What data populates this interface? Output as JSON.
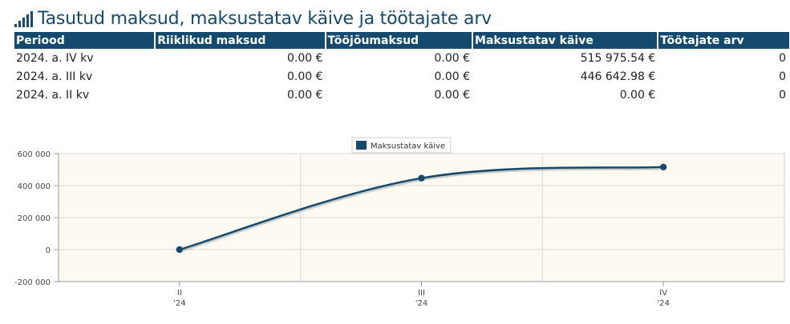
{
  "header": {
    "title": "Tasutud maksud, maksustatav käive ja töötajate arv",
    "icon": "signal-bars-icon"
  },
  "table": {
    "columns": [
      "Periood",
      "Riiklikud maksud",
      "Tööjõumaksud",
      "Maksustatav käive",
      "Töötajate arv"
    ],
    "rows": [
      [
        "2024. a. IV kv",
        "0.00 €",
        "0.00 €",
        "515 975.54 €",
        "0"
      ],
      [
        "2024. a. III kv",
        "0.00 €",
        "0.00 €",
        "446 642.98 €",
        "0"
      ],
      [
        "2024. a. II kv",
        "0.00 €",
        "0.00 €",
        "0.00 €",
        "0"
      ]
    ]
  },
  "colors": {
    "accent": "#134a6e",
    "plot_bg": "#fdfbf1",
    "grid": "#d8d8d8"
  },
  "chart_data": {
    "type": "line",
    "legend": "Maksustatav käive",
    "legend_position": "top-center",
    "categories": [
      "II\n'24",
      "III\n'24",
      "IV\n'24"
    ],
    "category_labels": [
      [
        "II",
        "'24"
      ],
      [
        "III",
        "'24"
      ],
      [
        "IV",
        "'24"
      ]
    ],
    "series": [
      {
        "name": "Maksustatav käive",
        "values": [
          0,
          446642.98,
          515975.54
        ]
      }
    ],
    "yticks": [
      "600 000",
      "400 000",
      "200 000",
      "0",
      "-200 000"
    ],
    "ytick_values": [
      600000,
      400000,
      200000,
      0,
      -200000
    ],
    "ylim": [
      -200000,
      600000
    ],
    "grid": true
  }
}
